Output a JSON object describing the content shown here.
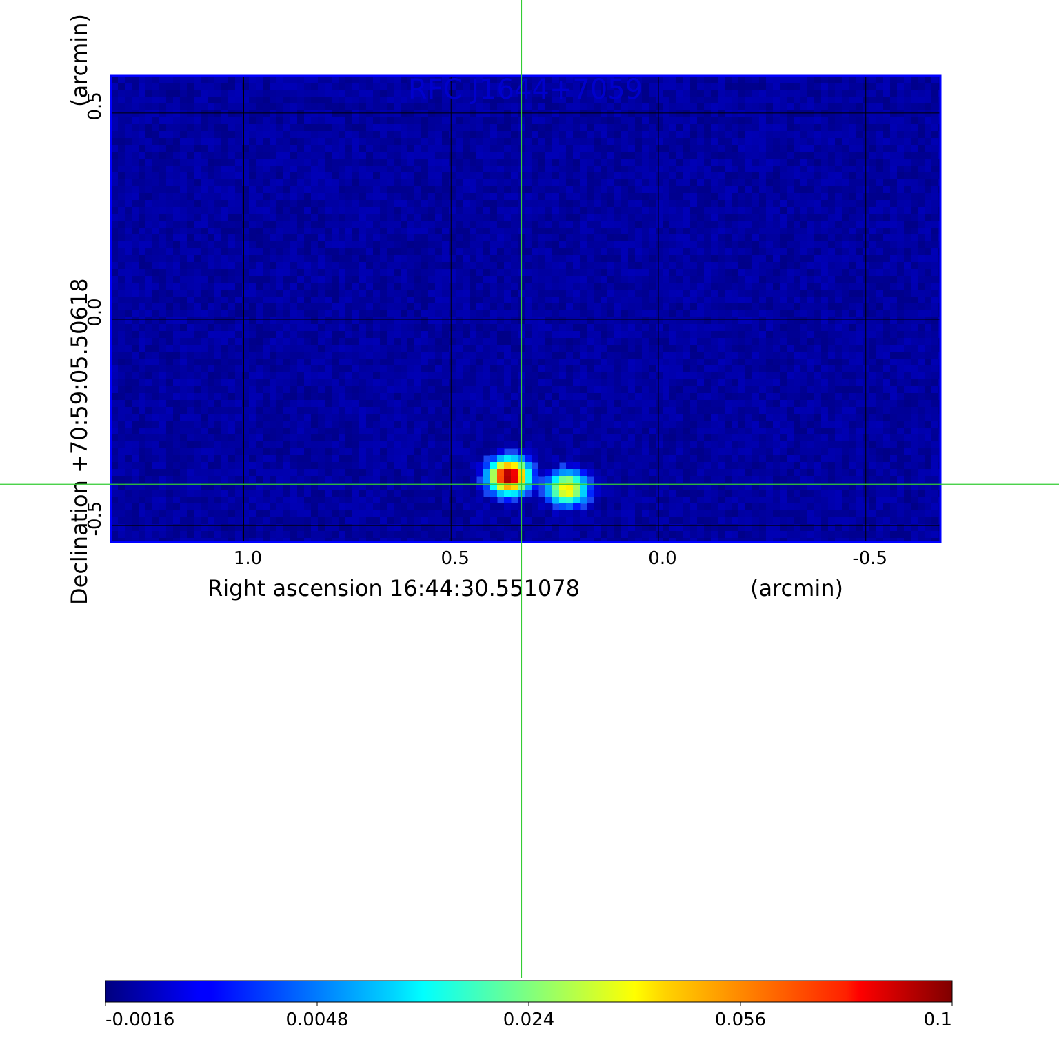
{
  "chart_data": {
    "type": "heatmap",
    "title": "RFC J1644+7059",
    "xlabel": "Right ascension  16:44:30.551078",
    "xunit": "(arcmin)",
    "ylabel": "Declination  +70:59:05.50618",
    "yunit": "(arcmin)",
    "x_ticks": [
      1.0,
      0.5,
      0.0,
      -0.5
    ],
    "x_tick_labels": [
      "1.0",
      "0.5",
      "0.0",
      "-0.5"
    ],
    "y_ticks": [
      0.5,
      0.0,
      -0.5
    ],
    "y_tick_labels": [
      "0.5",
      "0.0",
      "-0.5"
    ],
    "xlim": [
      1.32,
      -0.68
    ],
    "ylim": [
      -0.54,
      0.59
    ],
    "grid": true,
    "colormap": "jet",
    "colorbar": {
      "ticks": [
        -0.0016,
        0.0048,
        0.024,
        0.056,
        0.1
      ],
      "tick_labels": [
        "-0.0016",
        "0.0048",
        "0.024",
        "0.056",
        "0.1"
      ]
    },
    "crosshair": {
      "x": 0.33,
      "y": -0.4
    },
    "sources": [
      {
        "x": 0.36,
        "y": -0.38,
        "peak": 0.1
      },
      {
        "x": 0.22,
        "y": -0.41,
        "peak": 0.045
      }
    ],
    "background_level": -0.0008
  },
  "colors": {
    "crosshair": "#33cc33",
    "frame": "#0000ff",
    "grid": "#000000",
    "title": "#0000cc"
  }
}
